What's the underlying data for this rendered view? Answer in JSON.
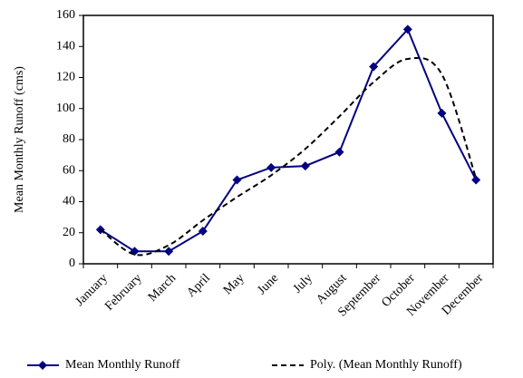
{
  "chart_data": {
    "type": "line",
    "y_label": "Mean Monthly Runoff (cms)",
    "categories": [
      "January",
      "February",
      "March",
      "April",
      "May",
      "June",
      "July",
      "August",
      "September",
      "October",
      "November",
      "December"
    ],
    "series": [
      {
        "name": "Mean Monthly Runoff",
        "color": "#000080",
        "style": "solid",
        "marker": "diamond",
        "values": [
          22,
          8,
          8,
          21,
          54,
          62,
          63,
          72,
          127,
          151,
          97,
          54
        ]
      },
      {
        "name": "Poly. (Mean Monthly Runoff)",
        "color": "#000000",
        "style": "dashed",
        "marker": "none",
        "values": [
          22,
          6,
          12,
          28,
          43,
          57,
          74,
          95,
          117,
          132,
          122,
          55
        ]
      }
    ],
    "ylim": [
      0,
      160
    ],
    "yticks": [
      0,
      20,
      40,
      60,
      80,
      100,
      120,
      140,
      160
    ],
    "legend": "bottom"
  }
}
